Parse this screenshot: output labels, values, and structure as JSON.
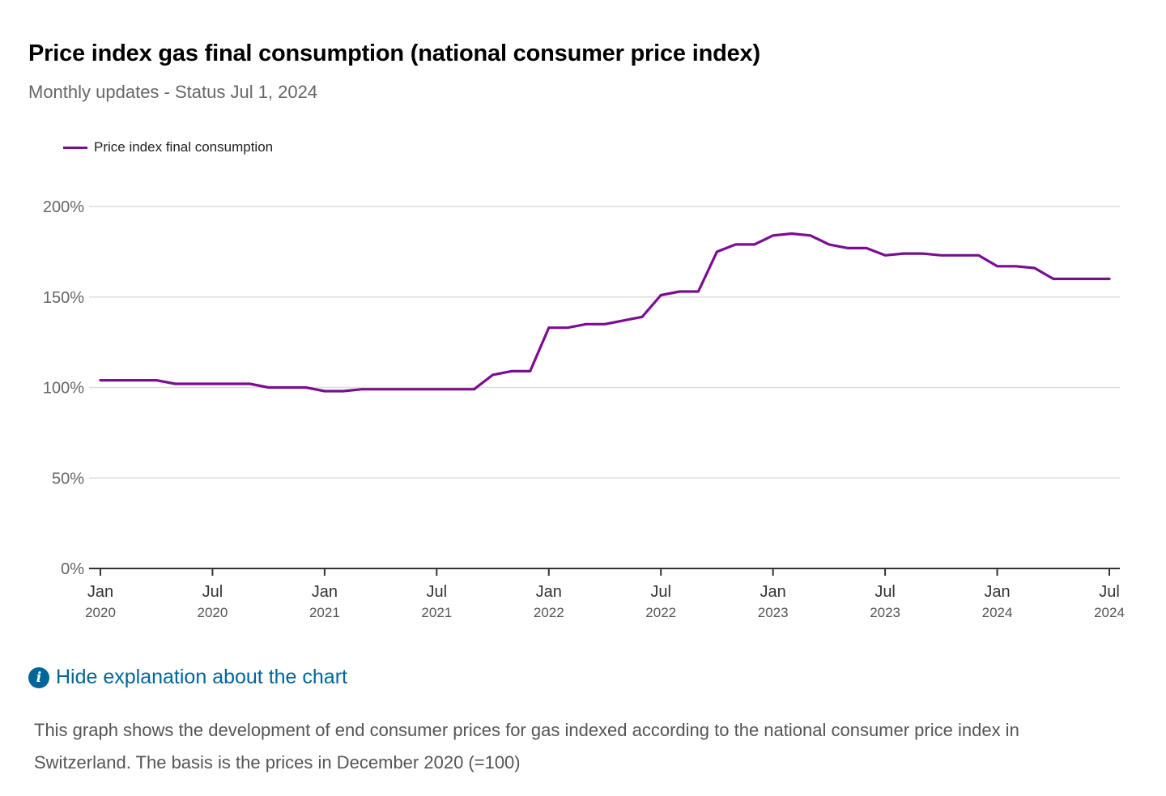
{
  "header": {
    "title": "Price index gas final consumption (national consumer price index)",
    "subtitle": "Monthly updates - Status Jul 1, 2024"
  },
  "explanation": {
    "toggle_label": "Hide explanation about the chart",
    "text": "This graph shows the development of end consumer prices for gas indexed according to the national consumer price index in Switzerland. The basis is the prices in December 2020 (=100)",
    "icon": "info-icon"
  },
  "colors": {
    "series": "#7b0c93",
    "grid": "#dddddd",
    "axis": "#333333",
    "tick_label": "#666666",
    "link": "#006699"
  },
  "chart_data": {
    "type": "line",
    "legend_position": "top-left",
    "grid": true,
    "ylim": [
      0,
      200
    ],
    "y_ticks": [
      0,
      50,
      100,
      150,
      200
    ],
    "y_tick_labels": [
      "0%",
      "50%",
      "100%",
      "150%",
      "200%"
    ],
    "x_ticks": [
      {
        "month": "Jan",
        "year": "2020",
        "date": "2020-01"
      },
      {
        "month": "Jul",
        "year": "2020",
        "date": "2020-07"
      },
      {
        "month": "Jan",
        "year": "2021",
        "date": "2021-01"
      },
      {
        "month": "Jul",
        "year": "2021",
        "date": "2021-07"
      },
      {
        "month": "Jan",
        "year": "2022",
        "date": "2022-01"
      },
      {
        "month": "Jul",
        "year": "2022",
        "date": "2022-07"
      },
      {
        "month": "Jan",
        "year": "2023",
        "date": "2023-01"
      },
      {
        "month": "Jul",
        "year": "2023",
        "date": "2023-07"
      },
      {
        "month": "Jan",
        "year": "2024",
        "date": "2024-01"
      },
      {
        "month": "Jul",
        "year": "2024",
        "date": "2024-07"
      }
    ],
    "x": [
      "2020-01",
      "2020-02",
      "2020-03",
      "2020-04",
      "2020-05",
      "2020-06",
      "2020-07",
      "2020-08",
      "2020-09",
      "2020-10",
      "2020-11",
      "2020-12",
      "2021-01",
      "2021-02",
      "2021-03",
      "2021-04",
      "2021-05",
      "2021-06",
      "2021-07",
      "2021-08",
      "2021-09",
      "2021-10",
      "2021-11",
      "2021-12",
      "2022-01",
      "2022-02",
      "2022-03",
      "2022-04",
      "2022-05",
      "2022-06",
      "2022-07",
      "2022-08",
      "2022-09",
      "2022-10",
      "2022-11",
      "2022-12",
      "2023-01",
      "2023-02",
      "2023-03",
      "2023-04",
      "2023-05",
      "2023-06",
      "2023-07",
      "2023-08",
      "2023-09",
      "2023-10",
      "2023-11",
      "2023-12",
      "2024-01",
      "2024-02",
      "2024-03",
      "2024-04",
      "2024-05",
      "2024-06",
      "2024-07"
    ],
    "series": [
      {
        "name": "Price index final consumption",
        "values": [
          104,
          104,
          104,
          104,
          102,
          102,
          102,
          102,
          102,
          100,
          100,
          100,
          98,
          98,
          99,
          99,
          99,
          99,
          99,
          99,
          99,
          107,
          109,
          109,
          133,
          133,
          135,
          135,
          137,
          139,
          151,
          153,
          153,
          175,
          179,
          179,
          184,
          185,
          184,
          179,
          177,
          177,
          173,
          174,
          174,
          173,
          173,
          173,
          167,
          167,
          166,
          160,
          160,
          160,
          160
        ]
      }
    ]
  }
}
